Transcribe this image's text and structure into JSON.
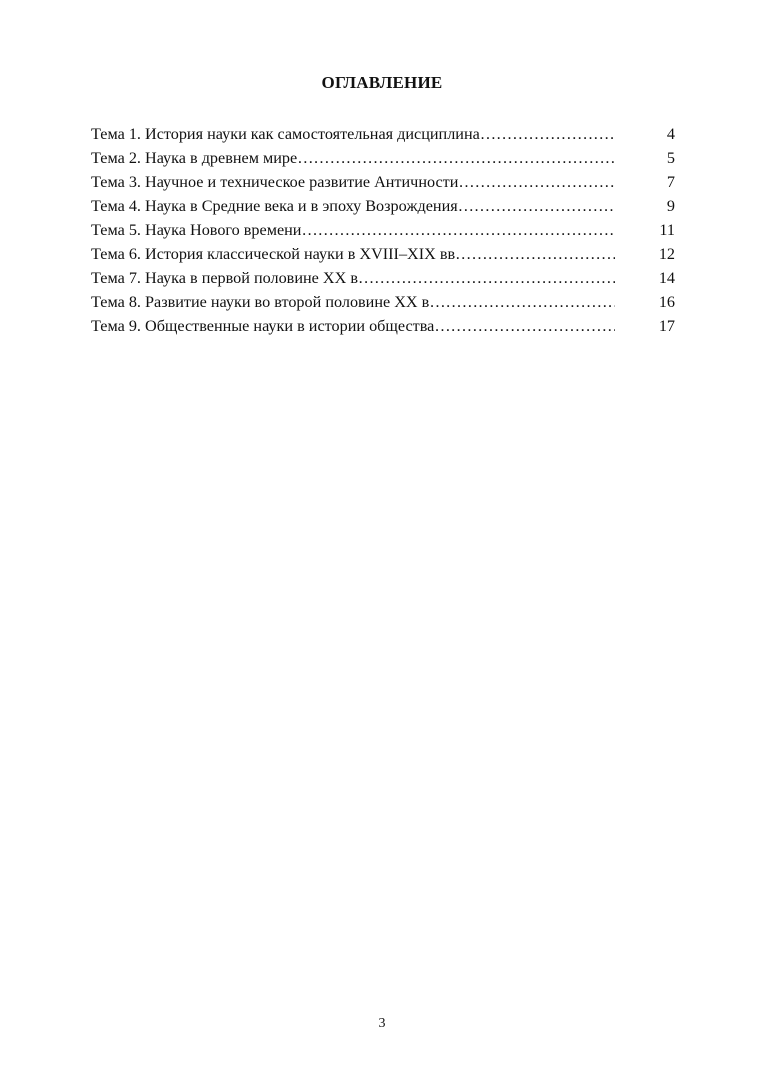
{
  "heading": "ОГЛАВЛЕНИЕ",
  "toc": [
    {
      "title": "Тема 1. История науки как самостоятельная дисциплина",
      "page": "4"
    },
    {
      "title": "Тема 2. Наука в древнем мире",
      "page": "5"
    },
    {
      "title": "Тема 3. Научное и техническое развитие Античности",
      "page": "7"
    },
    {
      "title": "Тема 4. Наука в Средние века и в эпоху Возрождения",
      "page": "9"
    },
    {
      "title": "Тема 5. Наука Нового времени",
      "page": "11"
    },
    {
      "title": "Тема 6. История классической науки в XVIII–XIX вв",
      "page": "12"
    },
    {
      "title": "Тема 7. Наука в первой половине XX в",
      "page": "14"
    },
    {
      "title": "Тема 8. Развитие науки во второй половине XX в",
      "page": "16"
    },
    {
      "title": "Тема 9. Общественные науки в истории общества",
      "page": "17"
    }
  ],
  "page_number": "3"
}
